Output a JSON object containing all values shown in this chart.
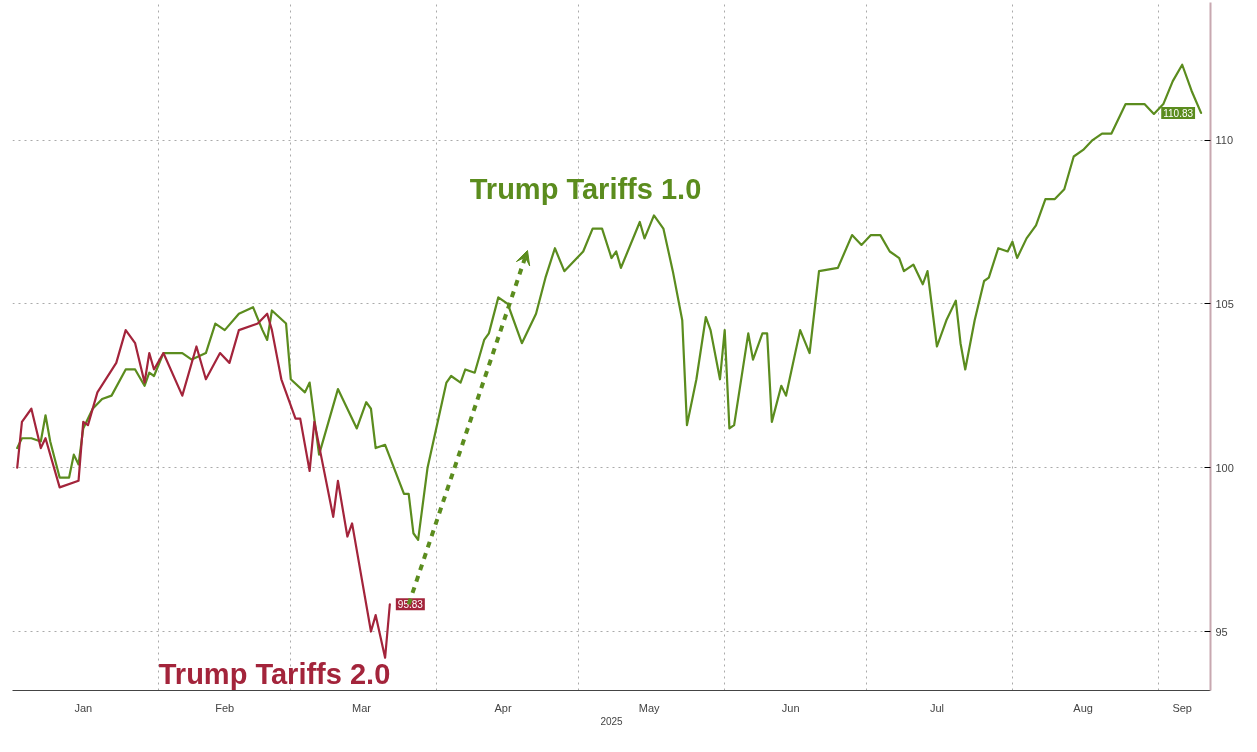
{
  "chart_data": {
    "type": "line",
    "xlabel": "2025",
    "xlim": [
      "2025-01-01",
      "2025-09-12"
    ],
    "ylim": [
      93.2,
      114.2
    ],
    "yticks": [
      95,
      100,
      105,
      110
    ],
    "xticks": [
      {
        "value": "2025-02-01",
        "label": null
      },
      {
        "value": "2025-03-01",
        "label": null
      },
      {
        "value": "2025-04-01",
        "label": null
      },
      {
        "value": "2025-05-01",
        "label": null
      },
      {
        "value": "2025-06-01",
        "label": null
      },
      {
        "value": "2025-07-01",
        "label": null
      },
      {
        "value": "2025-08-01",
        "label": null
      },
      {
        "value": "2025-09-01",
        "label": null
      },
      {
        "value": "2025-01-16",
        "label": "Jan"
      },
      {
        "value": "2025-02-15",
        "label": "Feb"
      },
      {
        "value": "2025-03-16",
        "label": "Mar"
      },
      {
        "value": "2025-04-15",
        "label": "Apr"
      },
      {
        "value": "2025-05-16",
        "label": "May"
      },
      {
        "value": "2025-06-15",
        "label": "Jun"
      },
      {
        "value": "2025-07-16",
        "label": "Jul"
      },
      {
        "value": "2025-08-16",
        "label": "Aug"
      },
      {
        "value": "2025-09-06",
        "label": "Sep"
      }
    ],
    "grid": true,
    "line_style": "solid",
    "marker": "none",
    "annotations": [
      "Trump Tariffs 1.0",
      "Trump Tariffs 2.0"
    ],
    "series": [
      {
        "color": "#5b8c1e",
        "x": [
          "2025-01-02",
          "2025-01-03",
          "2025-01-05",
          "2025-01-07",
          "2025-01-08",
          "2025-01-09",
          "2025-01-11",
          "2025-01-13",
          "2025-01-14",
          "2025-01-15",
          "2025-01-16",
          "2025-01-18",
          "2025-01-20",
          "2025-01-22",
          "2025-01-25",
          "2025-01-27",
          "2025-01-29",
          "2025-01-30",
          "2025-01-31",
          "2025-02-02",
          "2025-02-06",
          "2025-02-08",
          "2025-02-11",
          "2025-02-13",
          "2025-02-15",
          "2025-02-18",
          "2025-02-21",
          "2025-02-23",
          "2025-02-24",
          "2025-02-25",
          "2025-02-28",
          "2025-03-01",
          "2025-03-04",
          "2025-03-05",
          "2025-03-07",
          "2025-03-11",
          "2025-03-15",
          "2025-03-17",
          "2025-03-18",
          "2025-03-19",
          "2025-03-21",
          "2025-03-25",
          "2025-03-26",
          "2025-03-27",
          "2025-03-28",
          "2025-03-30",
          "2025-04-03",
          "2025-04-04",
          "2025-04-06",
          "2025-04-07",
          "2025-04-09",
          "2025-04-11",
          "2025-04-12",
          "2025-04-14",
          "2025-04-16",
          "2025-04-19",
          "2025-04-22",
          "2025-04-24",
          "2025-04-26",
          "2025-04-28",
          "2025-05-02",
          "2025-05-04",
          "2025-05-06",
          "2025-05-08",
          "2025-05-09",
          "2025-05-10",
          "2025-05-14",
          "2025-05-15",
          "2025-05-17",
          "2025-05-19",
          "2025-05-21",
          "2025-05-23",
          "2025-05-24",
          "2025-05-26",
          "2025-05-28",
          "2025-05-29",
          "2025-05-31",
          "2025-06-01",
          "2025-06-02",
          "2025-06-03",
          "2025-06-06",
          "2025-06-07",
          "2025-06-09",
          "2025-06-10",
          "2025-06-11",
          "2025-06-13",
          "2025-06-14",
          "2025-06-17",
          "2025-06-19",
          "2025-06-21",
          "2025-06-25",
          "2025-06-28",
          "2025-06-30",
          "2025-07-02",
          "2025-07-04",
          "2025-07-06",
          "2025-07-08",
          "2025-07-09",
          "2025-07-11",
          "2025-07-13",
          "2025-07-14",
          "2025-07-16",
          "2025-07-18",
          "2025-07-20",
          "2025-07-21",
          "2025-07-22",
          "2025-07-24",
          "2025-07-26",
          "2025-07-27",
          "2025-07-29",
          "2025-07-31",
          "2025-08-01",
          "2025-08-02",
          "2025-08-04",
          "2025-08-06",
          "2025-08-08",
          "2025-08-10",
          "2025-08-12",
          "2025-08-14",
          "2025-08-16",
          "2025-08-18",
          "2025-08-20",
          "2025-08-22",
          "2025-08-25",
          "2025-08-29",
          "2025-08-31",
          "2025-09-02",
          "2025-09-04",
          "2025-09-06",
          "2025-09-08",
          "2025-09-10"
        ],
        "values": [
          100.6,
          100.9,
          100.9,
          100.8,
          101.6,
          100.8,
          99.7,
          99.7,
          100.4,
          100.1,
          101.2,
          101.8,
          102.1,
          102.2,
          103.0,
          103.0,
          102.5,
          102.9,
          102.8,
          103.5,
          103.5,
          103.3,
          103.5,
          104.4,
          104.2,
          104.7,
          104.9,
          104.2,
          103.9,
          104.8,
          104.4,
          102.7,
          102.3,
          102.6,
          100.4,
          102.4,
          101.2,
          102.0,
          101.8,
          100.6,
          100.7,
          99.2,
          99.2,
          98.0,
          97.8,
          100.0,
          102.6,
          102.8,
          102.6,
          103.0,
          102.9,
          103.9,
          104.1,
          105.2,
          105.0,
          103.8,
          104.7,
          105.8,
          106.7,
          106.0,
          106.6,
          107.3,
          107.3,
          106.4,
          106.6,
          106.1,
          107.5,
          107.0,
          107.7,
          107.3,
          106.0,
          104.5,
          101.3,
          102.7,
          104.6,
          104.2,
          102.7,
          104.2,
          101.2,
          101.3,
          104.1,
          103.3,
          104.1,
          104.1,
          101.4,
          102.5,
          102.2,
          104.2,
          103.5,
          106.0,
          106.1,
          107.1,
          106.8,
          107.1,
          107.1,
          106.6,
          106.4,
          106.0,
          106.2,
          105.6,
          106.0,
          103.7,
          104.5,
          105.1,
          103.8,
          103.0,
          104.5,
          105.7,
          105.8,
          106.7,
          106.6,
          106.9,
          106.4,
          107.0,
          107.4,
          108.2,
          108.2,
          108.5,
          109.5,
          109.7,
          110.0,
          110.2,
          110.2,
          111.1,
          111.1,
          110.8,
          111.1,
          111.8,
          112.3,
          111.5,
          110.83
        ],
        "value_labels": [
          null,
          null,
          null,
          null,
          null,
          null,
          null,
          null,
          null,
          null,
          null,
          null,
          null,
          null,
          null,
          null,
          null,
          null,
          null,
          null,
          null,
          null,
          null,
          null,
          null,
          null,
          null,
          null,
          null,
          null,
          null,
          null,
          null,
          null,
          null,
          null,
          null,
          null,
          null,
          null,
          null,
          null,
          null,
          null,
          null,
          null,
          null,
          null,
          null,
          null,
          null,
          null,
          null,
          null,
          null,
          null,
          null,
          null,
          null,
          null,
          null,
          null,
          null,
          null,
          null,
          null,
          null,
          null,
          null,
          null,
          null,
          null,
          null,
          null,
          null,
          null,
          null,
          null,
          null,
          null,
          null,
          null,
          null,
          null,
          null,
          null,
          null,
          null,
          null,
          null,
          null,
          null,
          null,
          null,
          null,
          null,
          null,
          null,
          null,
          null,
          null,
          null,
          null,
          null,
          null,
          null,
          null,
          null,
          null,
          null,
          null,
          null,
          null,
          null,
          null,
          null,
          null,
          null,
          null,
          null,
          null,
          null,
          null,
          null,
          null,
          null,
          null,
          null,
          null,
          null,
          "110.83"
        ]
      },
      {
        "color": "#a3243b",
        "x": [
          "2025-01-02",
          "2025-01-03",
          "2025-01-05",
          "2025-01-07",
          "2025-01-08",
          "2025-01-11",
          "2025-01-15",
          "2025-01-16",
          "2025-01-17",
          "2025-01-19",
          "2025-01-23",
          "2025-01-25",
          "2025-01-27",
          "2025-01-29",
          "2025-01-30",
          "2025-01-31",
          "2025-02-02",
          "2025-02-06",
          "2025-02-09",
          "2025-02-11",
          "2025-02-14",
          "2025-02-16",
          "2025-02-18",
          "2025-02-22",
          "2025-02-24",
          "2025-02-25",
          "2025-02-27",
          "2025-03-02",
          "2025-03-03",
          "2025-03-05",
          "2025-03-06",
          "2025-03-10",
          "2025-03-11",
          "2025-03-13",
          "2025-03-14",
          "2025-03-18",
          "2025-03-19",
          "2025-03-21",
          "2025-03-22"
        ],
        "values": [
          100.0,
          101.4,
          101.8,
          100.6,
          100.9,
          99.4,
          99.6,
          101.4,
          101.3,
          102.3,
          103.2,
          104.2,
          103.8,
          102.6,
          103.5,
          103.0,
          103.5,
          102.2,
          103.7,
          102.7,
          103.5,
          103.2,
          104.2,
          104.4,
          104.7,
          104.2,
          102.7,
          101.5,
          101.5,
          99.9,
          101.4,
          98.5,
          99.6,
          97.9,
          98.3,
          95.0,
          95.5,
          94.2,
          95.83
        ],
        "value_labels": [
          null,
          null,
          null,
          null,
          null,
          null,
          null,
          null,
          null,
          null,
          null,
          null,
          null,
          null,
          null,
          null,
          null,
          null,
          null,
          null,
          null,
          null,
          null,
          null,
          null,
          null,
          null,
          null,
          null,
          null,
          null,
          null,
          null,
          null,
          null,
          null,
          null,
          null,
          "95.83"
        ]
      }
    ]
  }
}
